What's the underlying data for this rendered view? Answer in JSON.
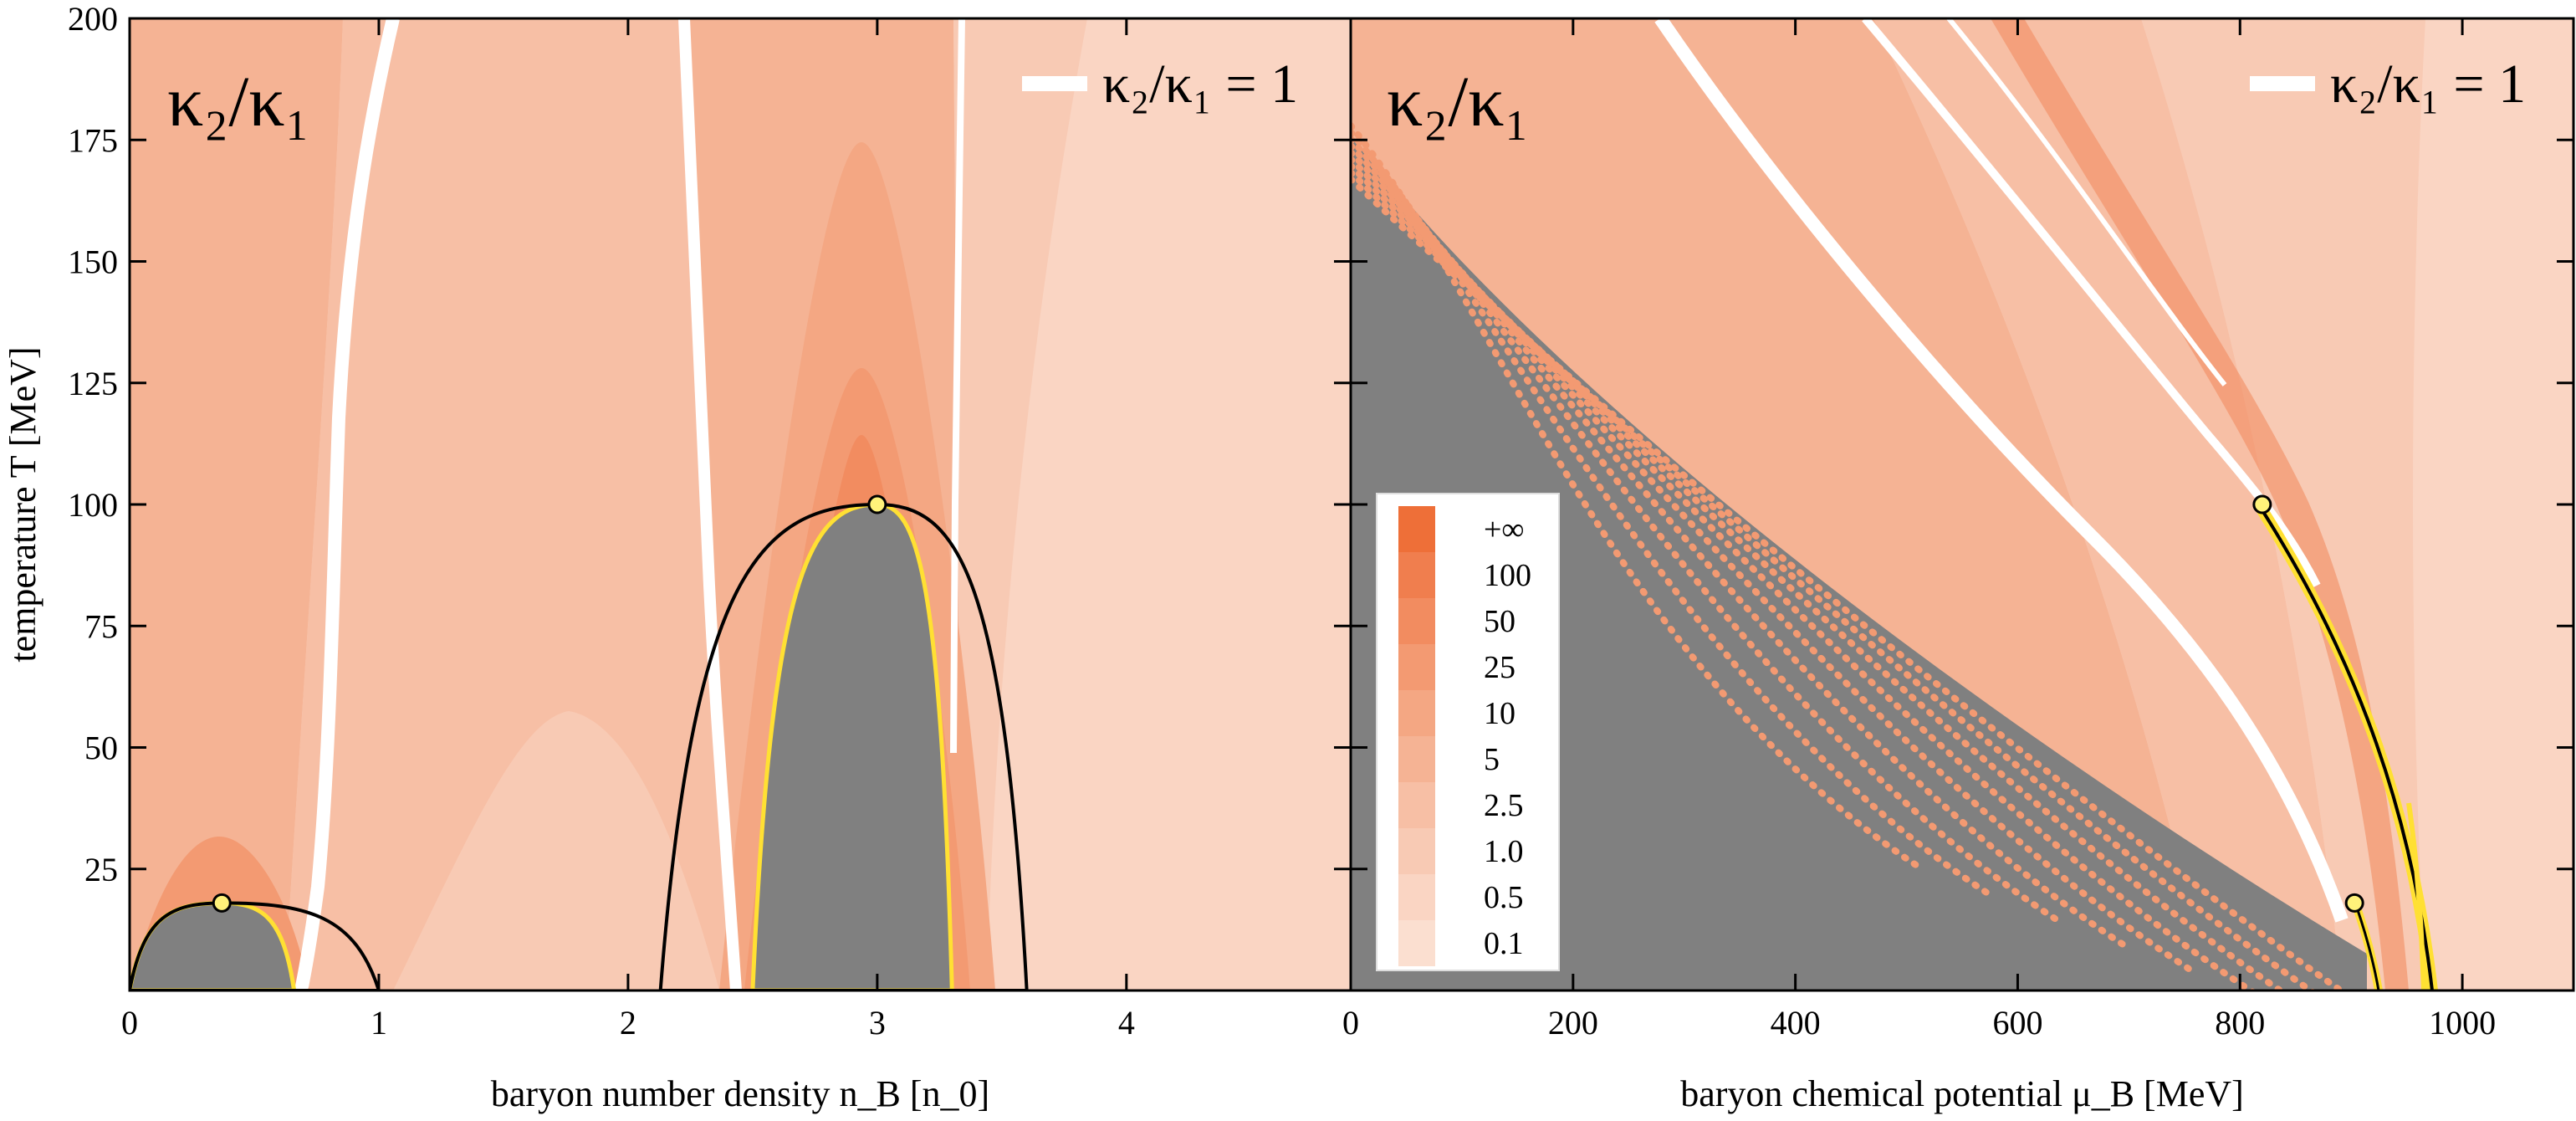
{
  "chart_data": [
    {
      "type": "heatmap",
      "title": "κ₂/κ₁",
      "xlabel": "baryon number density n_B [n_0]",
      "ylabel": "temperature T [MeV]",
      "xlim": [
        0,
        4.9
      ],
      "ylim": [
        0,
        200
      ],
      "xticks": [
        0,
        1,
        2,
        3,
        4
      ],
      "yticks": [
        25,
        50,
        75,
        100,
        125,
        150,
        175,
        200
      ],
      "legend": [
        {
          "label": "κ₂/κ₁ = 1",
          "color": "#ffffff"
        }
      ],
      "critical_points": [
        {
          "x": 0.37,
          "y": 18
        },
        {
          "x": 3.0,
          "y": 100
        }
      ],
      "spinodal_regions": [
        {
          "x_left": 0.0,
          "x_right": 0.66,
          "peak_x": 0.37,
          "peak_y": 18
        },
        {
          "x_left": 2.5,
          "x_right": 3.3,
          "peak_x": 3.0,
          "peak_y": 100
        }
      ],
      "coexistence_curves": [
        {
          "x_left": 0.0,
          "x_right": 1.0,
          "peak_x": 0.37,
          "peak_y": 18
        },
        {
          "x_left": 2.13,
          "x_right": 3.6,
          "peak_x": 3.0,
          "peak_y": 100
        }
      ]
    },
    {
      "type": "heatmap",
      "title": "κ₂/κ₁",
      "xlabel": "baryon chemical potential μ_B [MeV]",
      "ylabel": "",
      "xlim": [
        0,
        1100
      ],
      "ylim": [
        0,
        200
      ],
      "xticks": [
        0,
        200,
        400,
        600,
        800,
        1000
      ],
      "yticks": [
        25,
        50,
        75,
        100,
        125,
        150,
        175,
        200
      ],
      "legend": [
        {
          "label": "κ₂/κ₁ = 1",
          "color": "#ffffff"
        }
      ],
      "critical_points": [
        {
          "x": 820,
          "y": 100
        },
        {
          "x": 903,
          "y": 18
        }
      ],
      "colorbar": {
        "labels": [
          "+∞",
          "100",
          "50",
          "25",
          "10",
          "5",
          "2.5",
          "1.0",
          "0.5",
          "0.1"
        ],
        "colors": [
          "#ee6f38",
          "#f07e4e",
          "#f28c60",
          "#f39a72",
          "#f4a783",
          "#f5b394",
          "#f7bfa5",
          "#f8cab4",
          "#fad5c3",
          "#fbdfd0"
        ]
      }
    }
  ]
}
